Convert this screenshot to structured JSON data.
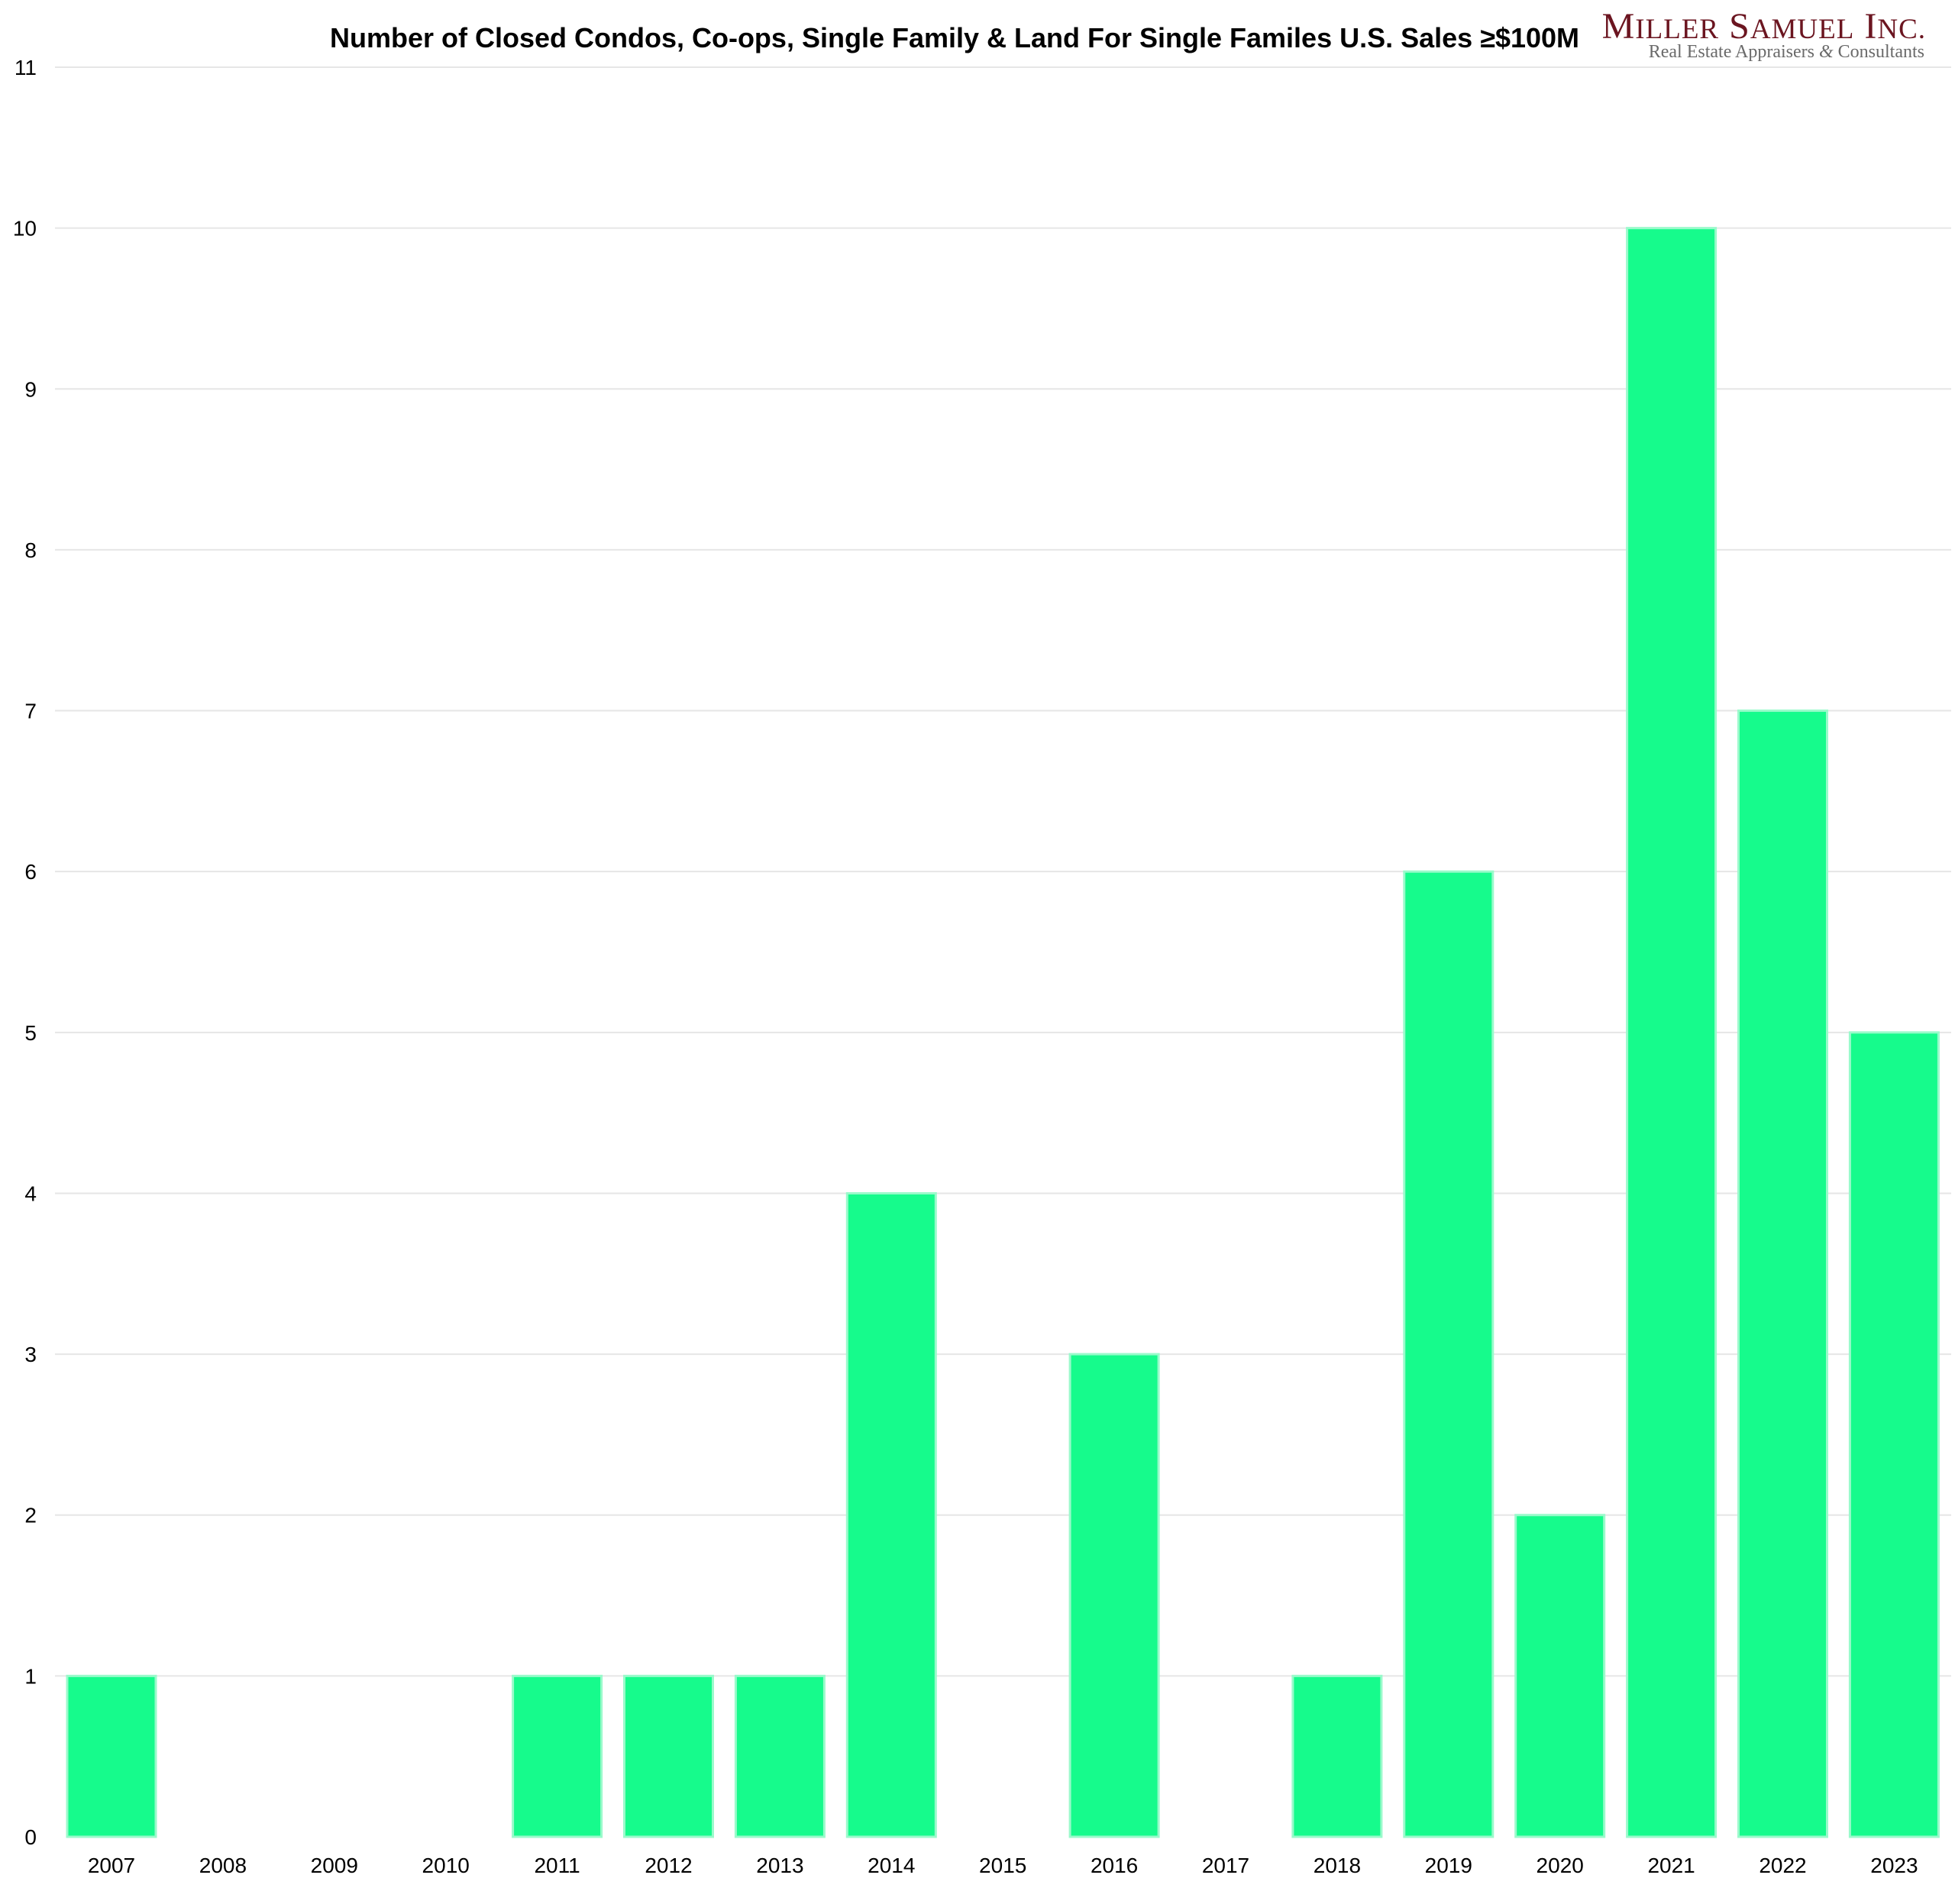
{
  "chart_data": {
    "type": "bar",
    "title": "Number of Closed Condos, Co-ops, Single Family & Land For Single Familes U.S. Sales ≥$100M",
    "xlabel": "",
    "ylabel": "",
    "categories": [
      "2007",
      "2008",
      "2009",
      "2010",
      "2011",
      "2012",
      "2013",
      "2014",
      "2015",
      "2016",
      "2017",
      "2018",
      "2019",
      "2020",
      "2021",
      "2022",
      "2023"
    ],
    "values": [
      1,
      0,
      0,
      0,
      1,
      1,
      1,
      4,
      0,
      3,
      0,
      1,
      6,
      2,
      10,
      7,
      5
    ],
    "ylim": [
      0,
      11
    ],
    "yticks": [
      "0",
      "1",
      "2",
      "3",
      "4",
      "5",
      "6",
      "7",
      "8",
      "9",
      "10",
      "11"
    ],
    "grid": true,
    "legend": "none",
    "bar_color": "#16FB8C",
    "bar_edge_color": "#9AFACB",
    "grid_color": "#E6E6E6"
  },
  "logo": {
    "name": "Miller Samuel Inc.",
    "name_parts": {
      "m": "M",
      "iller": "ILLER",
      "s": "S",
      "amuel": "AMUEL",
      "i": "I",
      "nc": "NC."
    },
    "tagline_start": "Real Estate Appraisers ",
    "tagline_amp": "&",
    "tagline_end": " Consultants",
    "color": "#6B1520"
  }
}
